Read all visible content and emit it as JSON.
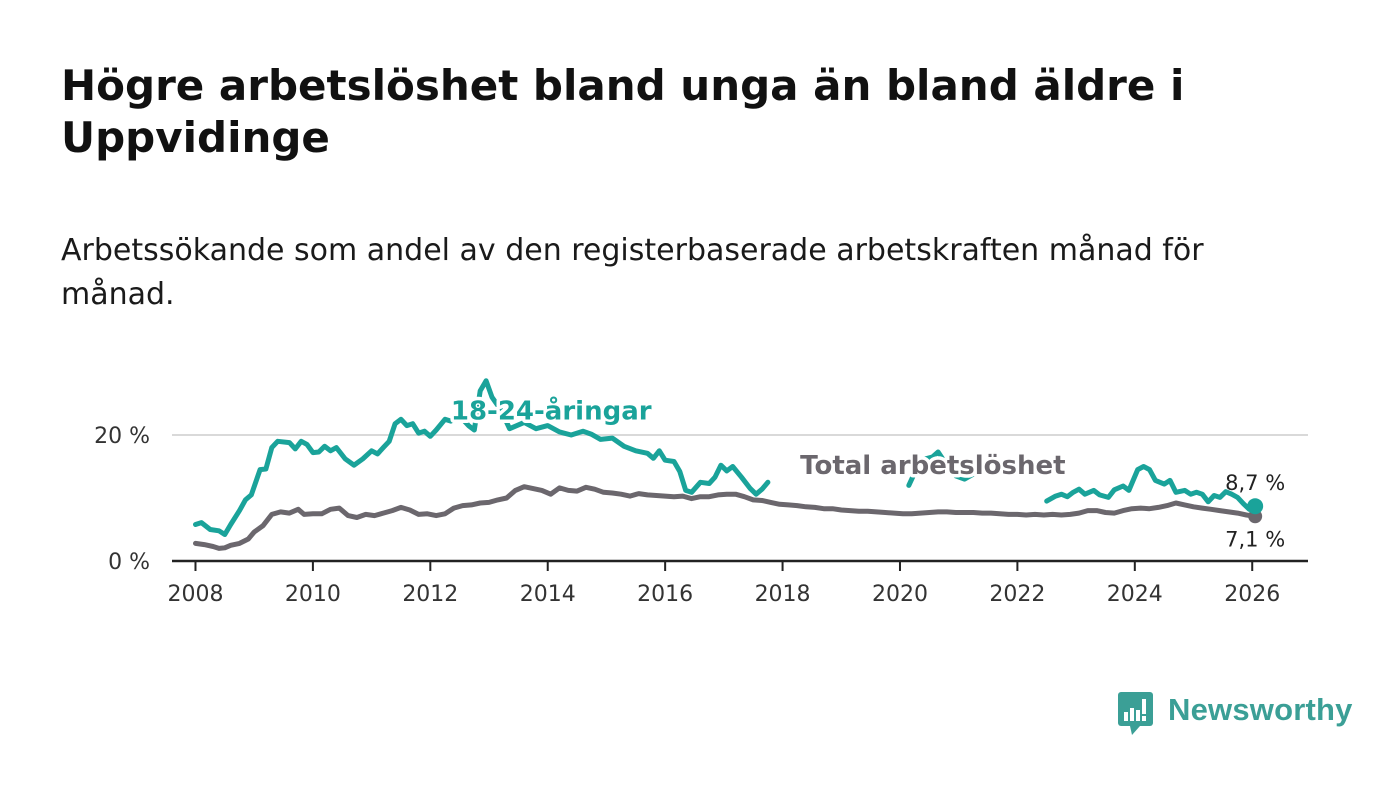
{
  "title": "Högre arbetslöshet bland unga än bland äldre i Uppvidinge",
  "subtitle": "Arbetssökande som andel av den registerbaserade arbetskraften månad för månad.",
  "brand": {
    "name": "Newsworthy",
    "color": "#3b9f96"
  },
  "chart_data": {
    "type": "line",
    "title": "Högre arbetslöshet bland unga än bland äldre i Uppvidinge",
    "xlabel": "",
    "ylabel": "",
    "xlim": [
      2007.6,
      2026.95
    ],
    "ylim": [
      0,
      30
    ],
    "x_ticks": [
      2008,
      2010,
      2012,
      2014,
      2016,
      2018,
      2020,
      2022,
      2024,
      2026
    ],
    "y_ticks": [
      {
        "value": 0,
        "label": "0 %"
      },
      {
        "value": 20,
        "label": "20 %"
      }
    ],
    "grid": "horizontal",
    "series": [
      {
        "name": "18-24-åringar",
        "color": "#1aa39a",
        "label_at": [
          2012.35,
          22.5
        ],
        "end_label": "8,7 %",
        "end_value": 8.7,
        "points": [
          [
            2008.0,
            5.8
          ],
          [
            2008.1,
            6.1
          ],
          [
            2008.25,
            5.0
          ],
          [
            2008.4,
            4.8
          ],
          [
            2008.5,
            4.2
          ],
          [
            2008.6,
            5.8
          ],
          [
            2008.75,
            8.0
          ],
          [
            2008.85,
            9.7
          ],
          [
            2008.95,
            10.5
          ],
          [
            2009.1,
            14.5
          ],
          [
            2009.2,
            14.6
          ],
          [
            2009.3,
            18.0
          ],
          [
            2009.4,
            19.0
          ],
          [
            2009.6,
            18.8
          ],
          [
            2009.7,
            17.8
          ],
          [
            2009.8,
            19.0
          ],
          [
            2009.9,
            18.5
          ],
          [
            2010.0,
            17.2
          ],
          [
            2010.1,
            17.3
          ],
          [
            2010.2,
            18.2
          ],
          [
            2010.3,
            17.5
          ],
          [
            2010.4,
            18.0
          ],
          [
            2010.55,
            16.2
          ],
          [
            2010.7,
            15.2
          ],
          [
            2010.85,
            16.2
          ],
          [
            2011.0,
            17.5
          ],
          [
            2011.1,
            17.0
          ],
          [
            2011.2,
            18.0
          ],
          [
            2011.3,
            19.0
          ],
          [
            2011.4,
            21.8
          ],
          [
            2011.5,
            22.5
          ],
          [
            2011.6,
            21.5
          ],
          [
            2011.7,
            21.8
          ],
          [
            2011.8,
            20.3
          ],
          [
            2011.9,
            20.6
          ],
          [
            2012.0,
            19.8
          ],
          [
            2012.1,
            20.8
          ],
          [
            2012.25,
            22.5
          ],
          [
            2012.35,
            22.2
          ],
          [
            2012.5,
            23.0
          ],
          [
            2012.65,
            21.5
          ],
          [
            2012.75,
            20.8
          ],
          [
            2012.85,
            27.0
          ],
          [
            2012.95,
            28.6
          ],
          [
            2013.05,
            26.0
          ],
          [
            2013.2,
            24.0
          ],
          [
            2013.35,
            21.0
          ],
          [
            2013.6,
            22.0
          ],
          [
            2013.8,
            21.0
          ],
          [
            2014.0,
            21.5
          ],
          [
            2014.2,
            20.5
          ],
          [
            2014.4,
            20.0
          ],
          [
            2014.6,
            20.6
          ],
          [
            2014.75,
            20.1
          ],
          [
            2014.9,
            19.3
          ],
          [
            2015.1,
            19.5
          ],
          [
            2015.3,
            18.2
          ],
          [
            2015.5,
            17.5
          ],
          [
            2015.7,
            17.1
          ],
          [
            2015.8,
            16.3
          ],
          [
            2015.9,
            17.5
          ],
          [
            2016.0,
            16.0
          ],
          [
            2016.15,
            15.8
          ],
          [
            2016.25,
            14.2
          ],
          [
            2016.35,
            11.2
          ],
          [
            2016.45,
            10.9
          ],
          [
            2016.6,
            12.5
          ],
          [
            2016.75,
            12.3
          ],
          [
            2016.85,
            13.3
          ],
          [
            2016.95,
            15.2
          ],
          [
            2017.05,
            14.3
          ],
          [
            2017.15,
            15.0
          ],
          [
            2017.3,
            13.3
          ],
          [
            2017.45,
            11.5
          ],
          [
            2017.55,
            10.6
          ],
          [
            2017.65,
            11.4
          ],
          [
            2017.75,
            12.5
          ]
        ],
        "points_segment_2": [
          [
            2020.15,
            12.0
          ],
          [
            2020.35,
            16.0
          ],
          [
            2020.55,
            16.5
          ],
          [
            2020.65,
            17.3
          ],
          [
            2020.8,
            15.2
          ],
          [
            2020.95,
            13.5
          ],
          [
            2021.1,
            13.0
          ],
          [
            2021.25,
            13.8
          ]
        ],
        "points_segment_3": [
          [
            2022.5,
            9.5
          ],
          [
            2022.65,
            10.3
          ],
          [
            2022.75,
            10.6
          ],
          [
            2022.85,
            10.2
          ],
          [
            2022.95,
            10.9
          ],
          [
            2023.05,
            11.4
          ],
          [
            2023.15,
            10.6
          ],
          [
            2023.3,
            11.2
          ],
          [
            2023.4,
            10.5
          ],
          [
            2023.55,
            10.1
          ],
          [
            2023.65,
            11.3
          ],
          [
            2023.8,
            11.9
          ],
          [
            2023.9,
            11.2
          ],
          [
            2024.05,
            14.5
          ],
          [
            2024.15,
            15.0
          ],
          [
            2024.25,
            14.5
          ],
          [
            2024.35,
            12.8
          ],
          [
            2024.5,
            12.2
          ],
          [
            2024.6,
            12.8
          ],
          [
            2024.7,
            10.9
          ],
          [
            2024.85,
            11.2
          ],
          [
            2024.95,
            10.6
          ],
          [
            2025.05,
            10.9
          ],
          [
            2025.15,
            10.6
          ],
          [
            2025.25,
            9.4
          ],
          [
            2025.35,
            10.4
          ],
          [
            2025.45,
            10.1
          ],
          [
            2025.55,
            11.0
          ],
          [
            2025.65,
            10.6
          ],
          [
            2025.75,
            10.1
          ],
          [
            2025.85,
            9.1
          ],
          [
            2025.95,
            8.2
          ],
          [
            2026.05,
            8.7
          ]
        ]
      },
      {
        "name": "Total arbetslöshet",
        "color": "#6b676d",
        "label_at": [
          2018.3,
          13.8
        ],
        "end_label": "7,1 %",
        "end_value": 7.1,
        "points": [
          [
            2008.0,
            2.8
          ],
          [
            2008.15,
            2.6
          ],
          [
            2008.3,
            2.3
          ],
          [
            2008.4,
            2.0
          ],
          [
            2008.5,
            2.1
          ],
          [
            2008.6,
            2.5
          ],
          [
            2008.75,
            2.8
          ],
          [
            2008.9,
            3.5
          ],
          [
            2009.0,
            4.6
          ],
          [
            2009.15,
            5.6
          ],
          [
            2009.3,
            7.4
          ],
          [
            2009.45,
            7.8
          ],
          [
            2009.6,
            7.6
          ],
          [
            2009.75,
            8.2
          ],
          [
            2009.85,
            7.4
          ],
          [
            2010.0,
            7.5
          ],
          [
            2010.15,
            7.5
          ],
          [
            2010.3,
            8.2
          ],
          [
            2010.45,
            8.4
          ],
          [
            2010.6,
            7.2
          ],
          [
            2010.75,
            6.9
          ],
          [
            2010.9,
            7.4
          ],
          [
            2011.05,
            7.2
          ],
          [
            2011.2,
            7.6
          ],
          [
            2011.35,
            8.0
          ],
          [
            2011.5,
            8.5
          ],
          [
            2011.65,
            8.1
          ],
          [
            2011.8,
            7.4
          ],
          [
            2011.95,
            7.5
          ],
          [
            2012.1,
            7.2
          ],
          [
            2012.25,
            7.5
          ],
          [
            2012.4,
            8.4
          ],
          [
            2012.55,
            8.8
          ],
          [
            2012.7,
            8.9
          ],
          [
            2012.85,
            9.2
          ],
          [
            2013.0,
            9.3
          ],
          [
            2013.15,
            9.7
          ],
          [
            2013.3,
            10.0
          ],
          [
            2013.45,
            11.2
          ],
          [
            2013.6,
            11.8
          ],
          [
            2013.75,
            11.5
          ],
          [
            2013.9,
            11.2
          ],
          [
            2014.05,
            10.6
          ],
          [
            2014.2,
            11.6
          ],
          [
            2014.35,
            11.2
          ],
          [
            2014.5,
            11.1
          ],
          [
            2014.65,
            11.7
          ],
          [
            2014.8,
            11.4
          ],
          [
            2014.95,
            10.9
          ],
          [
            2015.1,
            10.8
          ],
          [
            2015.25,
            10.6
          ],
          [
            2015.4,
            10.3
          ],
          [
            2015.55,
            10.7
          ],
          [
            2015.7,
            10.5
          ],
          [
            2015.85,
            10.4
          ],
          [
            2016.0,
            10.3
          ],
          [
            2016.15,
            10.2
          ],
          [
            2016.3,
            10.3
          ],
          [
            2016.45,
            9.9
          ],
          [
            2016.6,
            10.2
          ],
          [
            2016.75,
            10.2
          ],
          [
            2016.9,
            10.5
          ],
          [
            2017.05,
            10.6
          ],
          [
            2017.2,
            10.6
          ],
          [
            2017.35,
            10.2
          ],
          [
            2017.5,
            9.7
          ],
          [
            2017.65,
            9.6
          ],
          [
            2017.8,
            9.3
          ],
          [
            2017.95,
            9.0
          ],
          [
            2018.1,
            8.9
          ],
          [
            2018.25,
            8.8
          ],
          [
            2018.4,
            8.6
          ],
          [
            2018.55,
            8.5
          ],
          [
            2018.7,
            8.3
          ],
          [
            2018.85,
            8.3
          ],
          [
            2019.0,
            8.1
          ],
          [
            2019.15,
            8.0
          ],
          [
            2019.3,
            7.9
          ],
          [
            2019.45,
            7.9
          ],
          [
            2019.6,
            7.8
          ],
          [
            2019.75,
            7.7
          ],
          [
            2019.9,
            7.6
          ],
          [
            2020.05,
            7.5
          ],
          [
            2020.2,
            7.5
          ],
          [
            2020.35,
            7.6
          ],
          [
            2020.5,
            7.7
          ],
          [
            2020.65,
            7.8
          ],
          [
            2020.8,
            7.8
          ],
          [
            2020.95,
            7.7
          ],
          [
            2021.1,
            7.7
          ],
          [
            2021.25,
            7.7
          ],
          [
            2021.4,
            7.6
          ],
          [
            2021.55,
            7.6
          ],
          [
            2021.7,
            7.5
          ],
          [
            2021.85,
            7.4
          ],
          [
            2022.0,
            7.4
          ],
          [
            2022.15,
            7.3
          ],
          [
            2022.3,
            7.4
          ],
          [
            2022.45,
            7.3
          ],
          [
            2022.6,
            7.4
          ],
          [
            2022.75,
            7.3
          ],
          [
            2022.9,
            7.4
          ],
          [
            2023.05,
            7.6
          ],
          [
            2023.2,
            8.0
          ],
          [
            2023.35,
            8.0
          ],
          [
            2023.5,
            7.7
          ],
          [
            2023.65,
            7.6
          ],
          [
            2023.8,
            8.0
          ],
          [
            2023.95,
            8.3
          ],
          [
            2024.1,
            8.4
          ],
          [
            2024.25,
            8.3
          ],
          [
            2024.4,
            8.5
          ],
          [
            2024.55,
            8.8
          ],
          [
            2024.7,
            9.2
          ],
          [
            2024.85,
            8.9
          ],
          [
            2025.0,
            8.6
          ],
          [
            2025.15,
            8.4
          ],
          [
            2025.3,
            8.2
          ],
          [
            2025.45,
            8.0
          ],
          [
            2025.6,
            7.8
          ],
          [
            2025.75,
            7.6
          ],
          [
            2025.9,
            7.3
          ],
          [
            2026.05,
            7.1
          ]
        ]
      }
    ]
  }
}
